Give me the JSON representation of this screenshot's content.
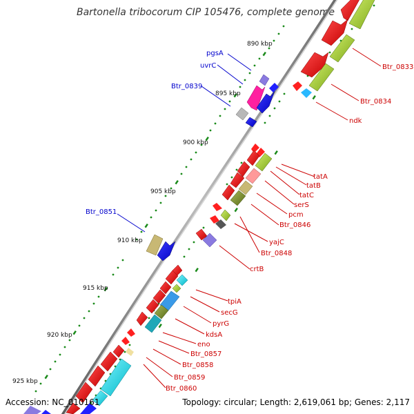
{
  "title": "Bartonella tribocorum CIP 105476, complete genome",
  "footer": {
    "accession": "Accession: NC_010161",
    "summary": "Topology: circular; Length: 2,619,061 bp; Genes: 2,117"
  },
  "scale_labels": [
    "890 kbp",
    "895 kbp",
    "900 kbp",
    "905 kbp",
    "910 kbp",
    "915 kbp",
    "920 kbp",
    "925 kbp"
  ],
  "gene_labels": [
    {
      "name": "Btr_0833",
      "color": "#cc0000"
    },
    {
      "name": "Btr_0834",
      "color": "#cc0000"
    },
    {
      "name": "ndk",
      "color": "#cc0000"
    },
    {
      "name": "pgsA",
      "color": "#0000cc"
    },
    {
      "name": "uvrC",
      "color": "#0000cc"
    },
    {
      "name": "Btr_0839",
      "color": "#0000cc"
    },
    {
      "name": "tatA",
      "color": "#cc0000"
    },
    {
      "name": "tatB",
      "color": "#cc0000"
    },
    {
      "name": "tatC",
      "color": "#cc0000"
    },
    {
      "name": "serS",
      "color": "#cc0000"
    },
    {
      "name": "pcm",
      "color": "#cc0000"
    },
    {
      "name": "Btr_0846",
      "color": "#cc0000"
    },
    {
      "name": "yajC",
      "color": "#cc0000"
    },
    {
      "name": "Btr_0848",
      "color": "#cc0000"
    },
    {
      "name": "crtB",
      "color": "#cc0000"
    },
    {
      "name": "Btr_0851",
      "color": "#0000cc"
    },
    {
      "name": "tpiA",
      "color": "#cc0000"
    },
    {
      "name": "secG",
      "color": "#cc0000"
    },
    {
      "name": "pyrG",
      "color": "#cc0000"
    },
    {
      "name": "kdsA",
      "color": "#cc0000"
    },
    {
      "name": "eno",
      "color": "#cc0000"
    },
    {
      "name": "Btr_0857",
      "color": "#cc0000"
    },
    {
      "name": "Btr_0858",
      "color": "#cc0000"
    },
    {
      "name": "Btr_0859",
      "color": "#cc0000"
    },
    {
      "name": "Btr_0860",
      "color": "#cc0000"
    }
  ],
  "colors": {
    "backbone": "#8a8a8a",
    "tick_dots": "#1a8a1a",
    "forward_label": "#cc0000",
    "reverse_label": "#0000cc"
  }
}
